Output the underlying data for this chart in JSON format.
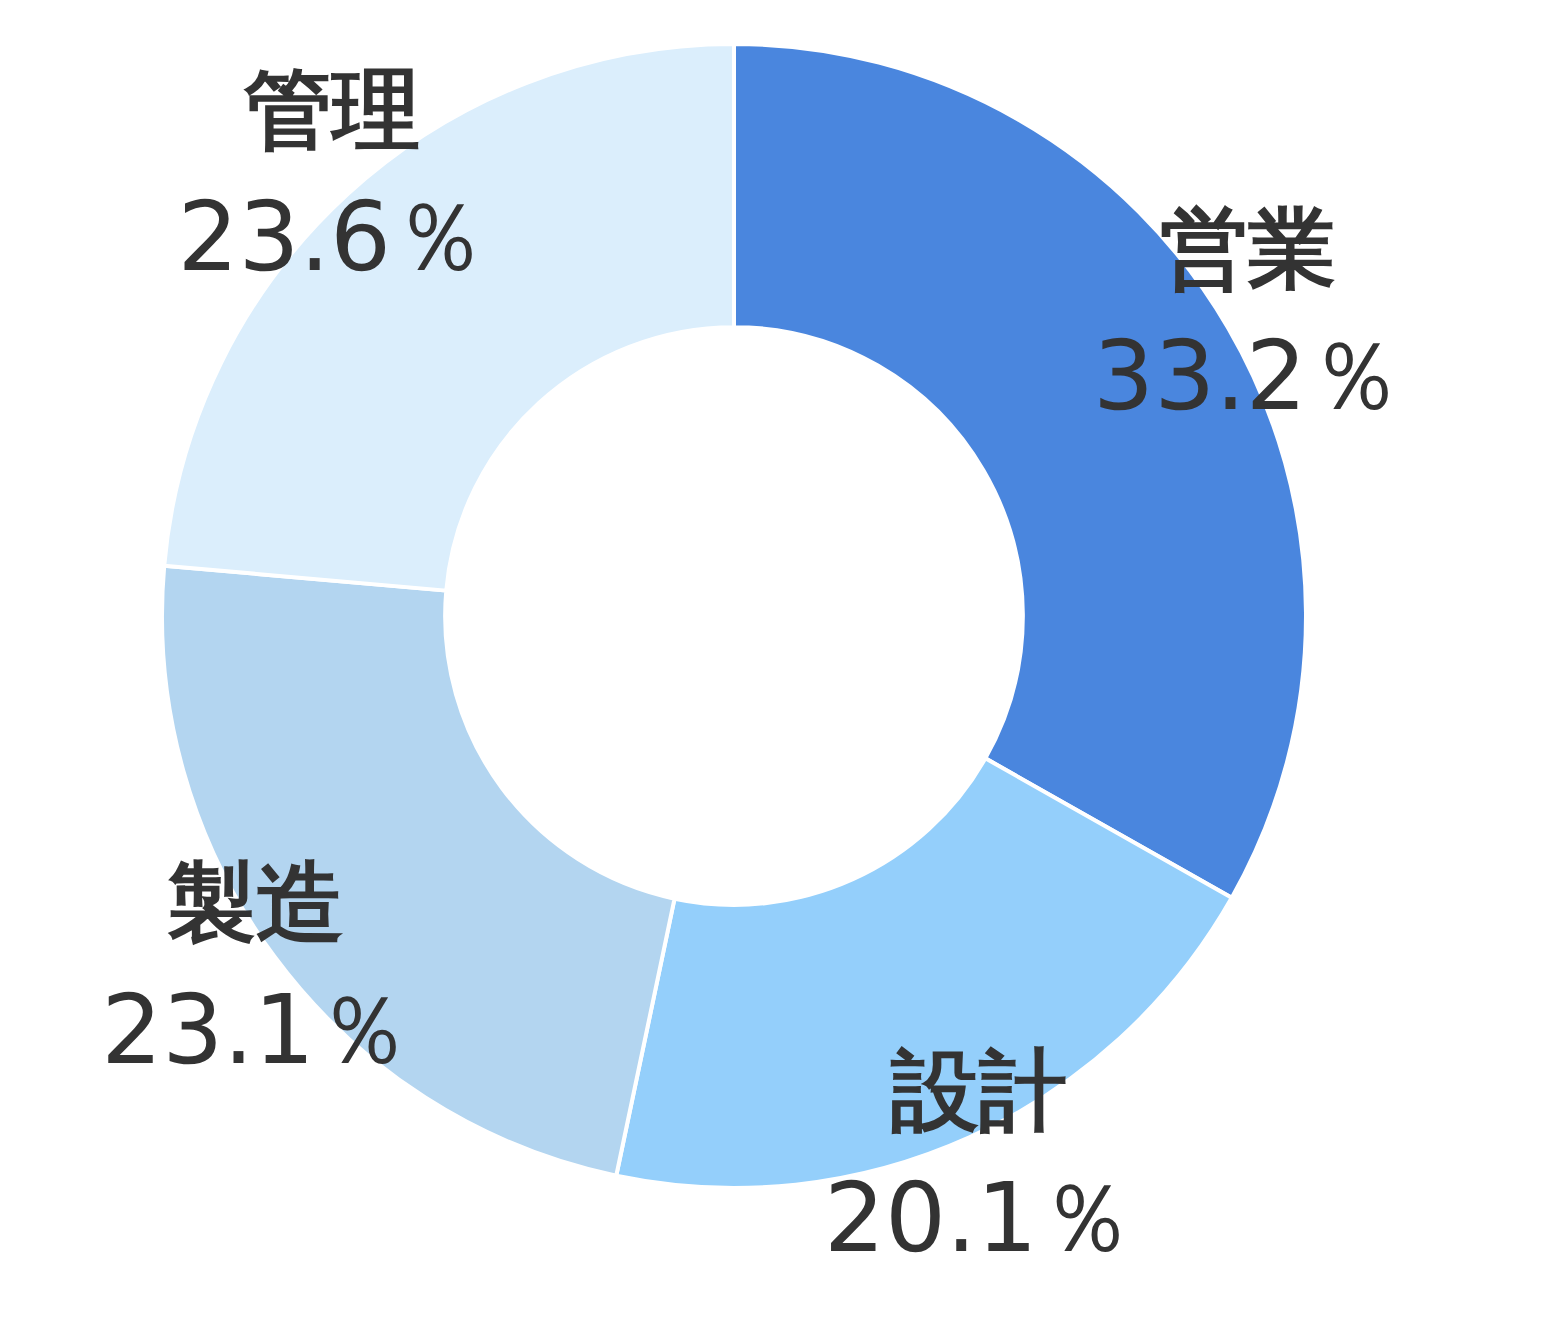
{
  "chart_data": {
    "type": "donut",
    "categories": [
      "営業",
      "設計",
      "製造",
      "管理"
    ],
    "values": [
      33.2,
      20.1,
      23.1,
      23.6
    ],
    "colors": [
      "#4a86de",
      "#94cffb",
      "#b3d5f0",
      "#dbeefc"
    ],
    "value_labels": [
      "33.2％",
      "20.1％",
      "23.1％",
      "23.6％"
    ],
    "legend": false
  }
}
